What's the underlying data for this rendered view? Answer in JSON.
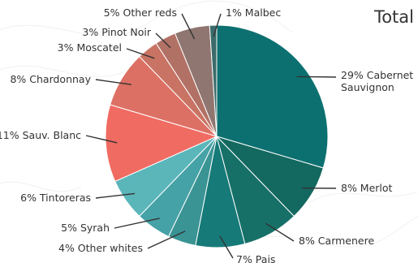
{
  "chart_data": {
    "type": "pie",
    "title": "Total",
    "slices": [
      {
        "label": "29% Cabernet Sauvignon",
        "lines": [
          "29% Cabernet",
          "Sauvignon"
        ],
        "value": 29,
        "color": "#0d7070"
      },
      {
        "label": "8% Merlot",
        "lines": [
          "8% Merlot"
        ],
        "value": 8,
        "color": "#13685f"
      },
      {
        "label": "8% Carmenere",
        "lines": [
          "8% Carmenere"
        ],
        "value": 8,
        "color": "#167068"
      },
      {
        "label": "7% Pais",
        "lines": [
          "7% Pais"
        ],
        "value": 7,
        "color": "#167a78"
      },
      {
        "label": "4% Other whites",
        "lines": [
          "4% Other whites"
        ],
        "value": 4,
        "color": "#3a9494"
      },
      {
        "label": "5% Syrah",
        "lines": [
          "5% Syrah"
        ],
        "value": 5,
        "color": "#45a2a6"
      },
      {
        "label": "6% Tintoreras",
        "lines": [
          "6% Tintoreras"
        ],
        "value": 6,
        "color": "#5bb6ba"
      },
      {
        "label": "11% Sauv. Blanc",
        "lines": [
          "11% Sauv. Blanc"
        ],
        "value": 11,
        "color": "#f06b62"
      },
      {
        "label": "8% Chardonnay",
        "lines": [
          "8% Chardonnay"
        ],
        "value": 8,
        "color": "#dd7064"
      },
      {
        "label": "3% Moscatel",
        "lines": [
          "3% Moscatel"
        ],
        "value": 3,
        "color": "#c87363"
      },
      {
        "label": "3% Pinot Noir",
        "lines": [
          "3% Pinot Noir"
        ],
        "value": 3,
        "color": "#b27165"
      },
      {
        "label": "5% Other reds",
        "lines": [
          "5% Other reds"
        ],
        "value": 5,
        "color": "#8f7670"
      },
      {
        "label": "1% Malbec",
        "lines": [
          "1% Malbec"
        ],
        "value": 1,
        "color": "#3a6b6a"
      }
    ],
    "legend": "none"
  }
}
